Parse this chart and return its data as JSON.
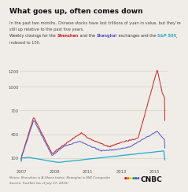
{
  "title": "What goes up, often comes down",
  "subtitle1": "In the past two months, Chinese stocks have lost trillions of yuan in value, but they’re",
  "subtitle2": "still up relative to the past five years.",
  "subtitle3_parts": [
    "Weekly closings for the ",
    "Shenzhen",
    " and the ",
    "Shanghai",
    " exchanges and the ",
    "S&P 500",
    ","
  ],
  "subtitle4": "indexed to 100.",
  "subtitle3_colors": [
    "#333333",
    "#cc2222",
    "#333333",
    "#5555cc",
    "#333333",
    "#22aacc",
    "#333333"
  ],
  "notes": "Notes: Shenzhen is A-Share Index; Shanghai is SSE Composite",
  "source": "Source: FactSet (as of July 27, 2015)",
  "y_ticks": [
    100,
    400,
    700,
    1000,
    1200
  ],
  "x_ticks_pos": [
    2007,
    2009,
    2011,
    2013,
    2015
  ],
  "x_ticks_labels": [
    "2007",
    "2009",
    "2011",
    "2013",
    "2015"
  ],
  "bg_color": "#f0ede8",
  "grid_color": "#ccccbb",
  "shenzhen_color": "#cc2222",
  "shanghai_color": "#5555cc",
  "sp500_color": "#22aacc",
  "title_fontsize": 6.5,
  "subtitle_fontsize": 3.6,
  "tick_fontsize": 3.8,
  "note_fontsize": 3.0
}
